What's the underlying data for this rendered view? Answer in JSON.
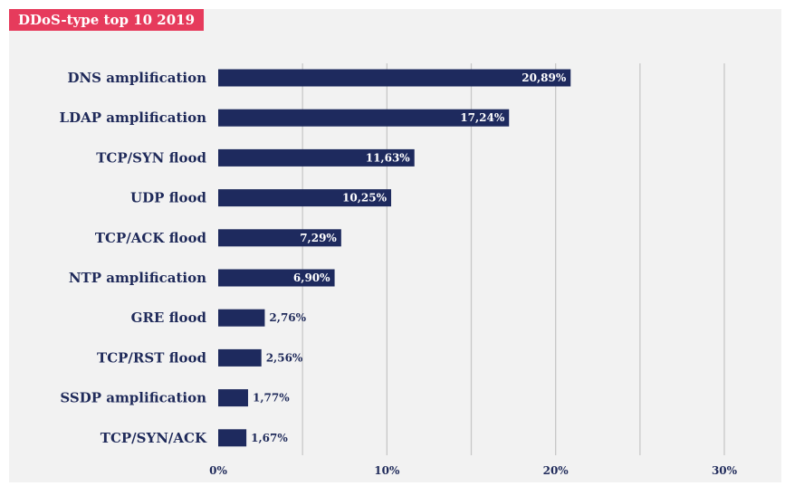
{
  "colors": {
    "bar": "#1e2a5e",
    "accent": "#e63b5c",
    "panel_bg": "#f2f2f2",
    "grid": "#c8c8c8",
    "text": "#1f2a5a"
  },
  "chart_data": {
    "type": "bar",
    "orientation": "horizontal",
    "title": "DDoS-type top 10 2019",
    "categories": [
      "DNS amplification",
      "LDAP amplification",
      "TCP/SYN flood",
      "UDP flood",
      "TCP/ACK flood",
      "NTP amplification",
      "GRE flood",
      "TCP/RST flood",
      "SSDP amplification",
      "TCP/SYN/ACK"
    ],
    "values": [
      20.89,
      17.24,
      11.63,
      10.25,
      7.29,
      6.9,
      2.76,
      2.56,
      1.77,
      1.67
    ],
    "data_labels": [
      "20,89%",
      "17,24%",
      "11,63%",
      "10,25%",
      "7,29%",
      "6,90%",
      "2,76%",
      "2,56%",
      "1,77%",
      "1,67%"
    ],
    "xlim": [
      0,
      30
    ],
    "xticks": [
      0,
      10,
      20,
      30
    ],
    "xtick_labels": [
      "0%",
      "10%",
      "20%",
      "30%"
    ],
    "grid_lines": [
      5,
      10,
      15,
      20,
      25,
      30
    ],
    "grid": true,
    "legend": false
  }
}
